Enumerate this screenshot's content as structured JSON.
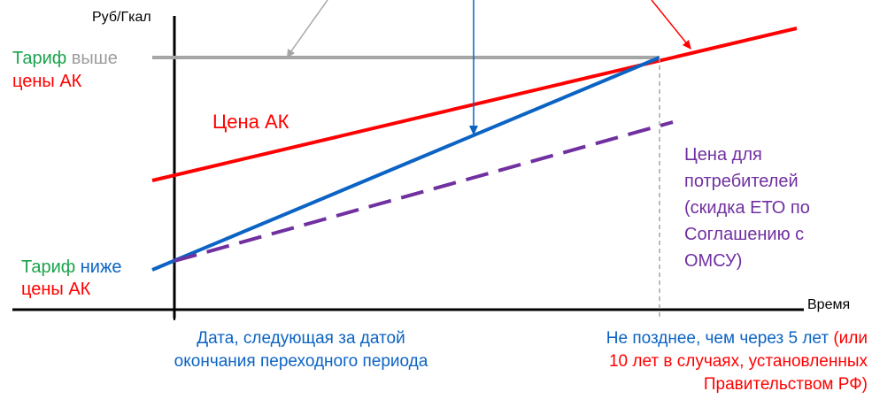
{
  "axes": {
    "y_label": "Руб/Гкал",
    "x_label": "Время"
  },
  "tariff_above": {
    "word": "Тариф",
    "rest": "выше",
    "line2": "цены АК"
  },
  "tariff_below": {
    "word": "Тариф",
    "rest": "ниже",
    "line2": "цены АК"
  },
  "price_ak": "Цена АК",
  "consumer_price": [
    "Цена для",
    "потребителей",
    "(скидка ЕТО по",
    "Соглашению с",
    "ОМСУ)"
  ],
  "bottom_left": [
    "Дата, следующая за датой",
    "окончания переходного периода"
  ],
  "bottom_right": {
    "line1_blue": "Не позднее, чем через 5 лет",
    "line1_red": "(или",
    "line2": "10 лет в случаях, установленных",
    "line3": "Правительством РФ)"
  },
  "colors": {
    "green": "#1aa34a",
    "gray": "#a6a6a6",
    "red": "#ff0000",
    "blue": "#0b63c4",
    "purple": "#7030a0"
  }
}
